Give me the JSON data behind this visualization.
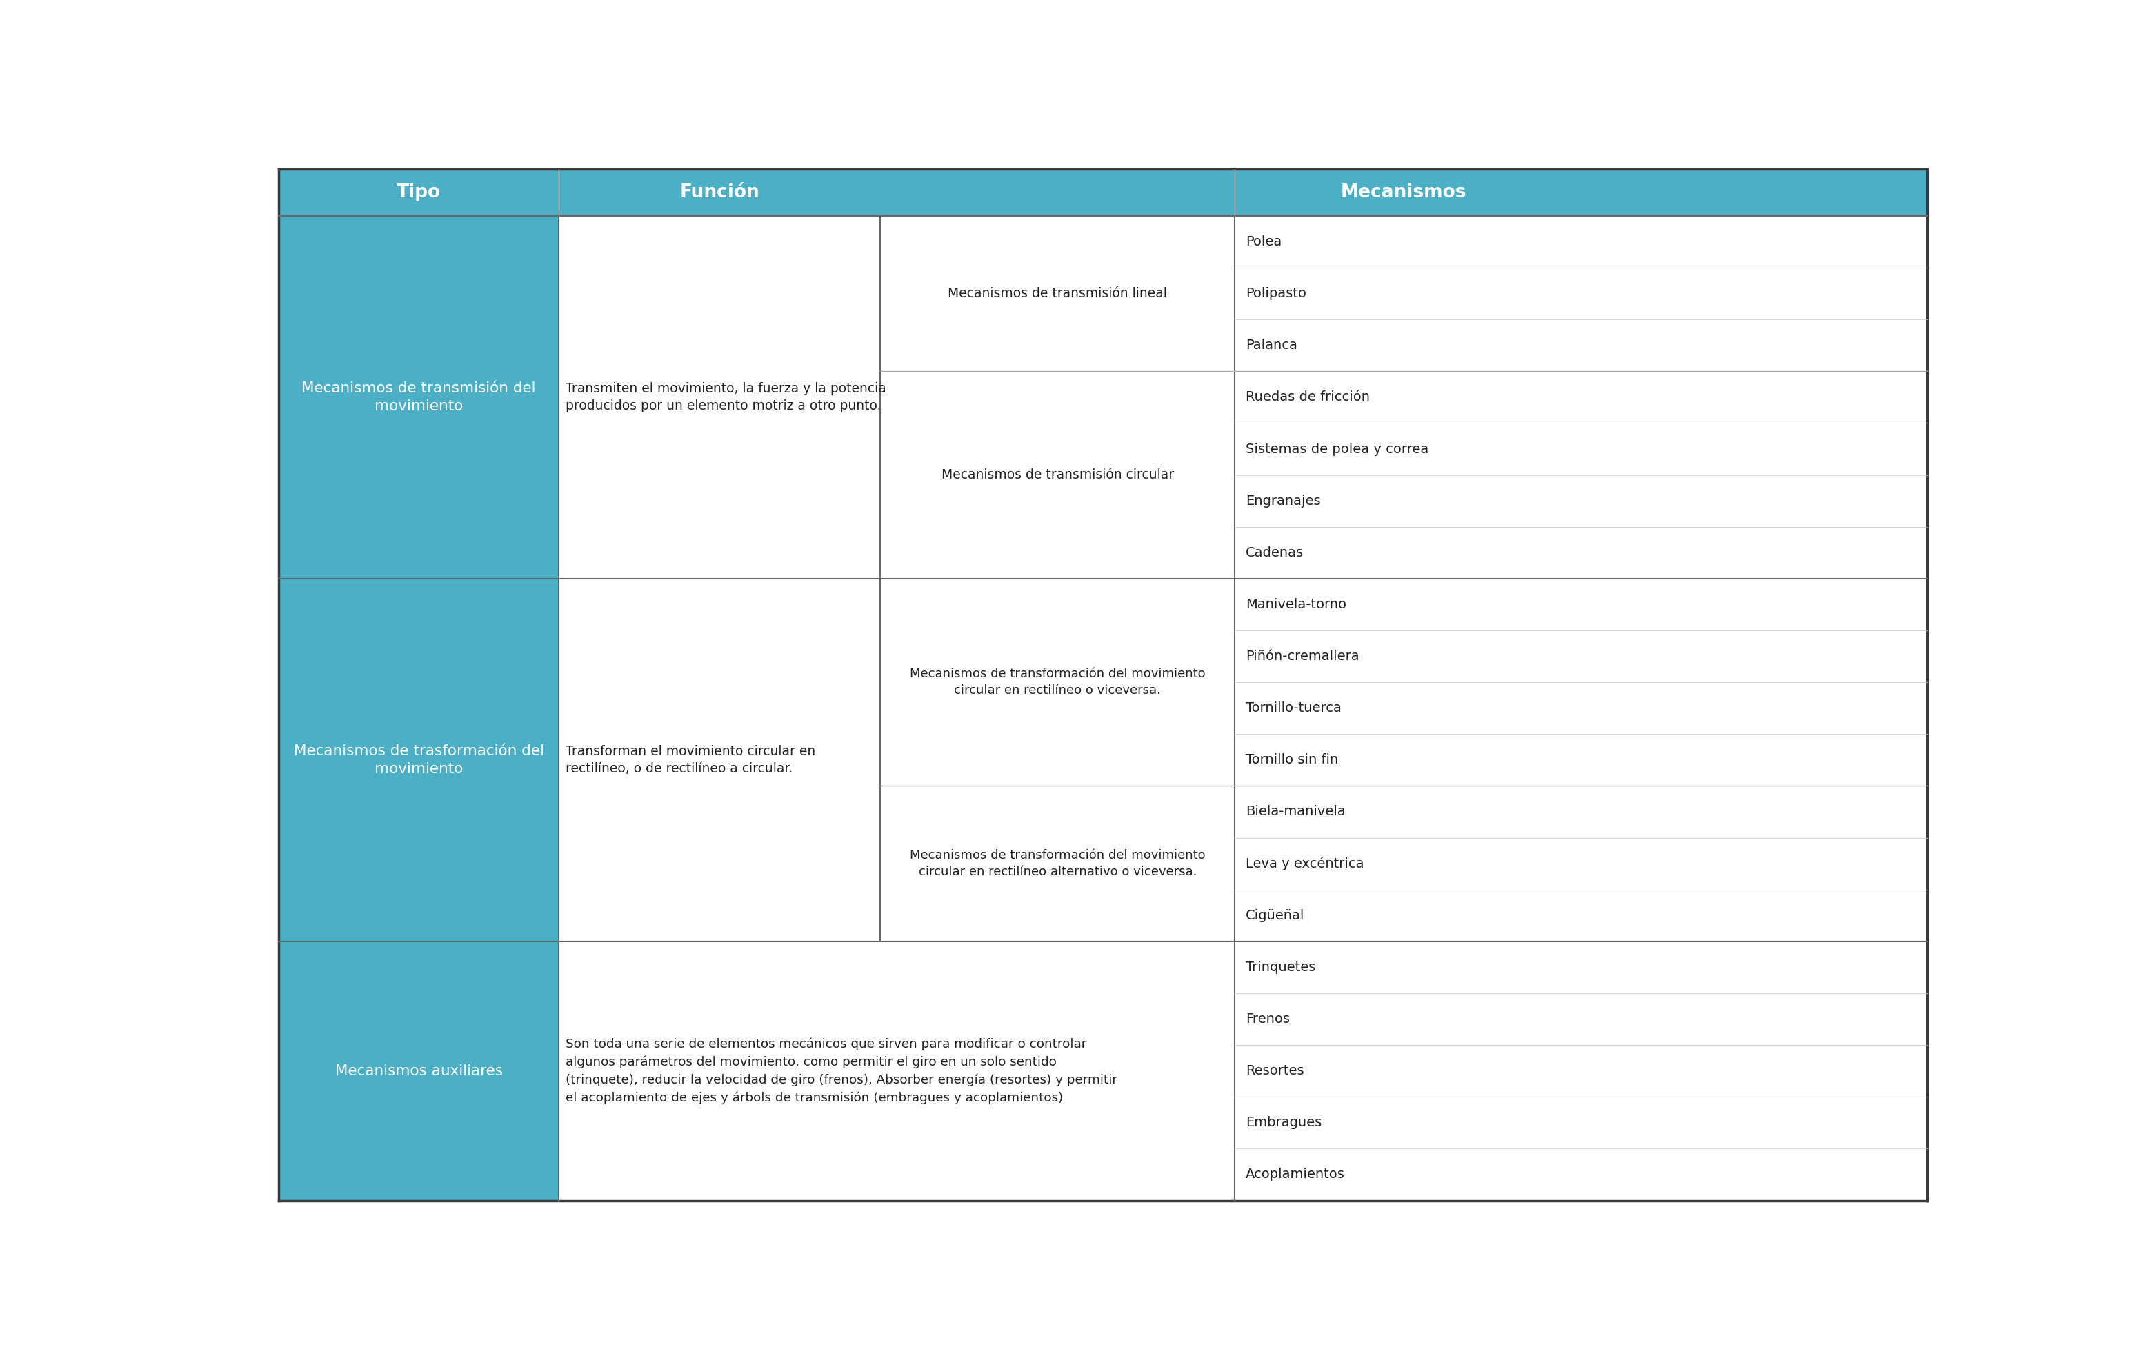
{
  "header_bg": "#4BAFC5",
  "header_text_color": "#FFFFFF",
  "col1_bg": "#4BAFC5",
  "col1_text_color": "#FFFFFF",
  "col2_bg": "#FFFFFF",
  "col2_text_color": "#333333",
  "col3_bg": "#FFFFFF",
  "col3_text_color": "#333333",
  "col4_bg": "#FFFFFF",
  "col4_text_color": "#333333",
  "border_outer": "#333333",
  "border_inner_major": "#555555",
  "border_inner_minor": "#AAAAAA",
  "headers": [
    "Tipo",
    "Función",
    "Mecanismos"
  ],
  "row1_tipo": "Mecanismos de transmisión del\nmovimiento",
  "row1_funcion": "Transmiten el movimiento, la fuerza y la potencia\nproducidos por un elemento motriz a otro punto.",
  "row1_sub1_label": "Mecanismos de transmisión lineal",
  "row1_sub1_mechs": [
    "Polea",
    "Polipasto",
    "Palanca"
  ],
  "row1_sub2_label": "Mecanismos de transmisión circular",
  "row1_sub2_mechs": [
    "Ruedas de fricción",
    "Sistemas de polea y correa",
    "Engranajes",
    "Cadenas"
  ],
  "row2_tipo": "Mecanismos de trasformación del\nmovimiento",
  "row2_funcion": "Transforman el movimiento circular en\nrectilíneo, o de rectilíneo a circular.",
  "row2_sub1_label": "Mecanismos de transformación del movimiento\ncircular en rectilíneo o viceversa.",
  "row2_sub1_mechs": [
    "Manivela-torno",
    "Piñón-cremallera",
    "Tornillo-tuerca",
    "Tornillo sin fin"
  ],
  "row2_sub2_label": "Mecanismos de transformación del movimiento\ncircular en rectilíneo alternativo o viceversa.",
  "row2_sub2_mechs": [
    "Biela-manivela",
    "Leva y excéntrica",
    "Cigüeñal"
  ],
  "row3_tipo": "Mecanismos auxiliares",
  "row3_funcion": "Son toda una serie de elementos mecánicos que sirven para modificar o controlar\nalgunos parámetros del movimiento, como permitir el giro en un solo sentido\n(trinquete), reducir la velocidad de giro (frenos), Absorber energía (resortes) y permitir\nel acoplamiento de ejes y árbols de transmisión (embragues y acoplamientos)",
  "row3_mechs": [
    "Trinquetes",
    "Frenos",
    "Resortes",
    "Embragues",
    "Acoplamientos"
  ],
  "fig_w": 31.2,
  "fig_h": 19.66
}
